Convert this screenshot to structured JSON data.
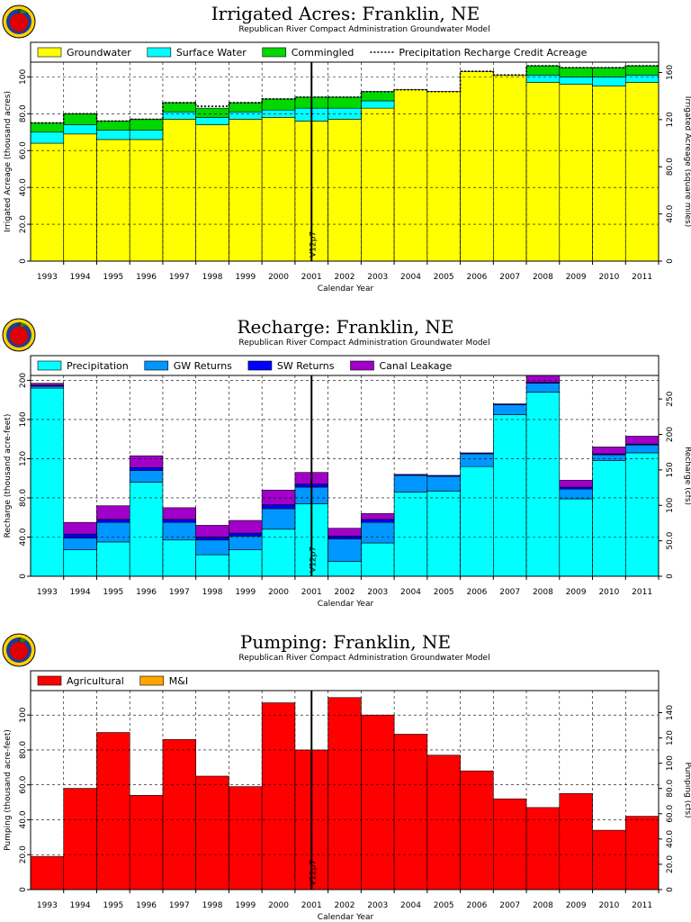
{
  "logo": {
    "icon": "apple-logo-icon",
    "colors": {
      "ring": "#ffd200",
      "apple": "#e00000",
      "stem": "#3a7a00",
      "center": "#1c3c9c"
    }
  },
  "chart_data": [
    {
      "id": "irrigated",
      "type": "bar",
      "stacked": true,
      "title": "Irrigated Acres: Franklin, NE",
      "subtitle": "Republican River Compact Administration Groundwater Model",
      "xlabel": "Calendar Year",
      "ylabel": "Irrigated Acreage (thousand acres)",
      "ylabel_right": "Irrigated Acreage (square miles)",
      "categories": [
        "1993",
        "1994",
        "1995",
        "1996",
        "1997",
        "1998",
        "1999",
        "2000",
        "2001",
        "2002",
        "2003",
        "2004",
        "2005",
        "2006",
        "2007",
        "2008",
        "2009",
        "2010",
        "2011"
      ],
      "ylim": [
        0,
        108
      ],
      "yticks": [
        0,
        20.0,
        40.0,
        60.0,
        80.0,
        100
      ],
      "ytick_labels": [
        "0",
        "20.0",
        "40.0",
        "60.0",
        "80.0",
        "100"
      ],
      "right_factor": 1.5625,
      "yticks_right": [
        0,
        40.0,
        80.0,
        120,
        160
      ],
      "ytick_labels_right": [
        "0",
        "40.0",
        "80.0",
        "120",
        "160"
      ],
      "grid": true,
      "legend_position": "top",
      "series": [
        {
          "name": "Groundwater",
          "color": "#ffff00",
          "values": [
            64,
            69,
            66,
            66,
            77,
            74,
            77,
            78,
            76,
            77,
            83,
            93,
            92,
            103,
            101,
            97,
            96,
            95,
            97
          ]
        },
        {
          "name": "Surface Water",
          "color": "#00ffff",
          "values": [
            6,
            5,
            5,
            5,
            4,
            4,
            4,
            4,
            7,
            6,
            4,
            0,
            0,
            0,
            0,
            4,
            4,
            5,
            4
          ]
        },
        {
          "name": "Commingled",
          "color": "#00d800",
          "values": [
            5,
            6,
            5,
            6,
            5,
            5,
            5,
            6,
            6,
            6,
            5,
            0,
            0,
            0,
            0,
            5,
            5,
            5,
            5
          ]
        }
      ],
      "line_series": {
        "name": "Precipitation Recharge Credit Acreage",
        "values": [
          75,
          80,
          76,
          77,
          86,
          84,
          86,
          88,
          89,
          89,
          92,
          93,
          92,
          103,
          101,
          106,
          105,
          105,
          106
        ]
      },
      "annotation": {
        "text": "V12p7",
        "position": 8.5
      }
    },
    {
      "id": "recharge",
      "type": "bar",
      "stacked": true,
      "title": "Recharge: Franklin, NE",
      "subtitle": "Republican River Compact Administration Groundwater Model",
      "xlabel": "Calendar Year",
      "ylabel": "Recharge (thousand acre-feet)",
      "ylabel_right": "Recharge (cfs)",
      "categories": [
        "1993",
        "1994",
        "1995",
        "1996",
        "1997",
        "1998",
        "1999",
        "2000",
        "2001",
        "2002",
        "2003",
        "2004",
        "2005",
        "2006",
        "2007",
        "2008",
        "2009",
        "2010",
        "2011"
      ],
      "ylim": [
        0,
        205
      ],
      "yticks": [
        0,
        40.0,
        80.0,
        120,
        160,
        200
      ],
      "ytick_labels": [
        "0",
        "40.0",
        "80.0",
        "120",
        "160",
        "200"
      ],
      "right_factor": 1.3813,
      "yticks_right": [
        0,
        50.0,
        100,
        150,
        200,
        250
      ],
      "ytick_labels_right": [
        "0",
        "50.0",
        "100",
        "150",
        "200",
        "250"
      ],
      "grid": true,
      "legend_position": "top",
      "series": [
        {
          "name": "Precipitation",
          "color": "#00ffff",
          "values": [
            192,
            27,
            35,
            96,
            37,
            22,
            27,
            48,
            74,
            15,
            34,
            86,
            87,
            112,
            165,
            188,
            79,
            118,
            126
          ]
        },
        {
          "name": "GW Returns",
          "color": "#0096ff",
          "values": [
            2,
            12,
            20,
            12,
            18,
            15,
            14,
            21,
            17,
            23,
            21,
            17,
            15,
            13,
            10,
            9,
            10,
            6,
            8
          ]
        },
        {
          "name": "SW Returns",
          "color": "#0000ff",
          "values": [
            1,
            4,
            3,
            3,
            3,
            3,
            3,
            4,
            3,
            3,
            3,
            1,
            1,
            1,
            1,
            1,
            2,
            1,
            1
          ]
        },
        {
          "name": "Canal Leakage",
          "color": "#a000c8",
          "values": [
            2,
            12,
            14,
            12,
            12,
            12,
            13,
            15,
            12,
            8,
            6,
            0,
            0,
            0,
            0,
            7,
            7,
            7,
            8
          ]
        }
      ],
      "annotation": {
        "text": "V12p7",
        "position": 8.5
      }
    },
    {
      "id": "pumping",
      "type": "bar",
      "stacked": true,
      "title": "Pumping: Franklin, NE",
      "subtitle": "Republican River Compact Administration Groundwater Model",
      "xlabel": "Calendar Year",
      "ylabel": "Pumping (thousand acre-feet)",
      "ylabel_right": "Pumping (cfs)",
      "categories": [
        "1993",
        "1994",
        "1995",
        "1996",
        "1997",
        "1998",
        "1999",
        "2000",
        "2001",
        "2002",
        "2003",
        "2004",
        "2005",
        "2006",
        "2007",
        "2008",
        "2009",
        "2010",
        "2011"
      ],
      "ylim": [
        0,
        114
      ],
      "yticks": [
        0,
        20.0,
        40.0,
        60.0,
        80.0,
        100
      ],
      "ytick_labels": [
        "0",
        "20.0",
        "40.0",
        "60.0",
        "80.0",
        "100"
      ],
      "right_factor": 1.3813,
      "yticks_right": [
        0,
        20.0,
        40.0,
        60.0,
        80.0,
        100,
        120,
        140
      ],
      "ytick_labels_right": [
        "0",
        "20.0",
        "40.0",
        "60.0",
        "80.0",
        "100",
        "120",
        "140"
      ],
      "grid": true,
      "legend_position": "top",
      "series": [
        {
          "name": "Agricultural",
          "color": "#ff0000",
          "values": [
            19,
            58,
            90,
            54,
            86,
            65,
            59,
            107,
            80,
            110,
            100,
            89,
            77,
            68,
            52,
            47,
            55,
            34,
            42
          ]
        },
        {
          "name": "M&I",
          "color": "#ffa500",
          "values": [
            0,
            0,
            0,
            0,
            0,
            0,
            0,
            0,
            0,
            0,
            0,
            0,
            0,
            0,
            0,
            0,
            0,
            0,
            0
          ]
        }
      ],
      "annotation": {
        "text": "V12p7",
        "position": 8.5
      }
    }
  ]
}
